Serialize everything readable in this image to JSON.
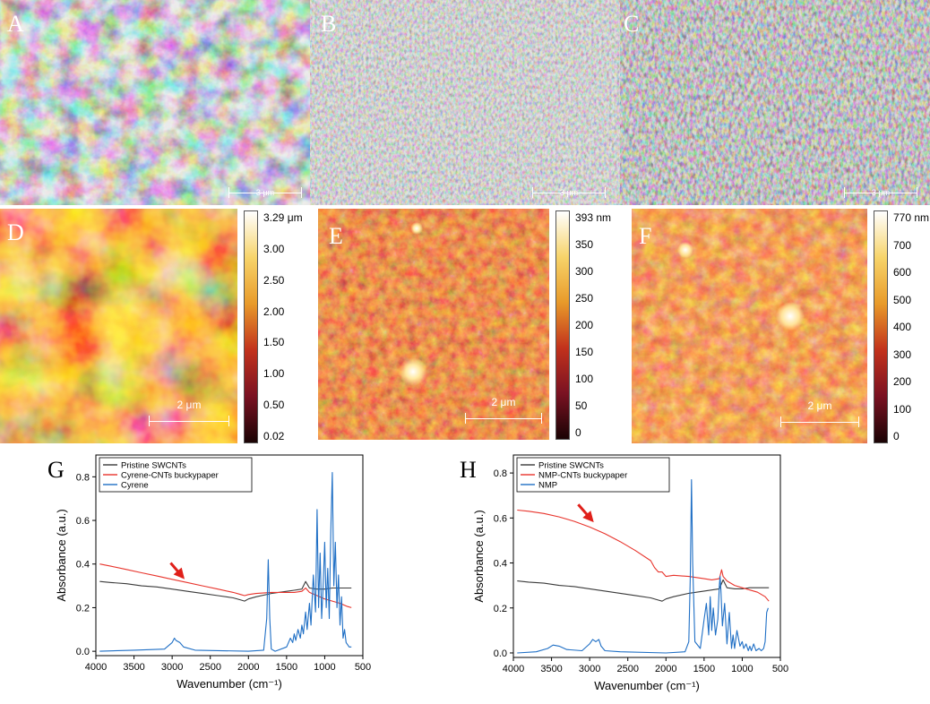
{
  "panels": {
    "A": {
      "label": "A",
      "scale": "3 μm"
    },
    "B": {
      "label": "B",
      "scale": "3 μm"
    },
    "C": {
      "label": "C",
      "scale": "3 μm"
    },
    "D": {
      "label": "D",
      "scale": "2 μm",
      "colorbar": [
        "3.29 μm",
        "3.00",
        "2.50",
        "2.00",
        "1.50",
        "1.00",
        "0.50",
        "0.02"
      ]
    },
    "E": {
      "label": "E",
      "scale": "2 μm",
      "colorbar": [
        "393 nm",
        "350",
        "300",
        "250",
        "200",
        "150",
        "100",
        "50",
        "0"
      ]
    },
    "F": {
      "label": "F",
      "scale": "2 μm",
      "colorbar": [
        "770 nm",
        "700",
        "600",
        "500",
        "400",
        "300",
        "200",
        "100",
        "0"
      ]
    }
  },
  "colors": {
    "pristine": "#3a3a3a",
    "buckypaper": "#e8342c",
    "solvent": "#1f6fc5",
    "arrow": "#e0201a"
  },
  "chart_data": [
    {
      "label": "G",
      "type": "line",
      "xlabel": "Wavenumber (cm⁻¹)",
      "ylabel": "Absorbance (a.u.)",
      "xlim": [
        4000,
        500
      ],
      "ylim": [
        -0.02,
        0.9
      ],
      "xticks": [
        4000,
        3500,
        3000,
        2500,
        2000,
        1500,
        1000,
        500
      ],
      "yticks": [
        0.0,
        0.2,
        0.4,
        0.6,
        0.8
      ],
      "ytick_labels": [
        "0.0",
        "0.2",
        "0.4",
        "0.6",
        "0.8"
      ],
      "legend": "top-left",
      "arrow": {
        "from": [
          3020,
          0.405
        ],
        "to": [
          2860,
          0.34
        ]
      },
      "series": [
        {
          "name": "Pristine SWCNTs",
          "color_key": "pristine",
          "x": [
            3950,
            3800,
            3600,
            3400,
            3200,
            3000,
            2800,
            2600,
            2400,
            2200,
            2100,
            2050,
            2000,
            1900,
            1700,
            1500,
            1400,
            1300,
            1250,
            1200,
            1100,
            1000,
            900,
            800,
            700,
            650
          ],
          "y": [
            0.32,
            0.315,
            0.31,
            0.3,
            0.295,
            0.285,
            0.275,
            0.265,
            0.255,
            0.245,
            0.235,
            0.23,
            0.24,
            0.25,
            0.265,
            0.275,
            0.28,
            0.285,
            0.32,
            0.29,
            0.285,
            0.285,
            0.29,
            0.29,
            0.29,
            0.29
          ]
        },
        {
          "name": "Cyrene-CNTs buckypaper",
          "color_key": "buckypaper",
          "x": [
            3950,
            3800,
            3600,
            3400,
            3200,
            3000,
            2800,
            2600,
            2400,
            2200,
            2100,
            2050,
            2000,
            1900,
            1700,
            1500,
            1400,
            1300,
            1250,
            1200,
            1100,
            1000,
            900,
            800,
            700,
            650
          ],
          "y": [
            0.4,
            0.39,
            0.375,
            0.36,
            0.345,
            0.33,
            0.315,
            0.3,
            0.285,
            0.27,
            0.26,
            0.255,
            0.26,
            0.265,
            0.27,
            0.27,
            0.27,
            0.275,
            0.29,
            0.27,
            0.255,
            0.24,
            0.23,
            0.22,
            0.205,
            0.2
          ]
        },
        {
          "name": "Cyrene",
          "color_key": "solvent",
          "x": [
            3950,
            3500,
            3100,
            3000,
            2970,
            2950,
            2900,
            2850,
            2700,
            2000,
            1800,
            1760,
            1740,
            1720,
            1700,
            1650,
            1500,
            1450,
            1420,
            1400,
            1380,
            1350,
            1320,
            1300,
            1280,
            1250,
            1230,
            1200,
            1180,
            1150,
            1120,
            1100,
            1080,
            1060,
            1040,
            1020,
            1000,
            980,
            960,
            940,
            920,
            900,
            880,
            860,
            840,
            820,
            800,
            780,
            760,
            740,
            720,
            700,
            680,
            650
          ],
          "y": [
            0.0,
            0.005,
            0.01,
            0.04,
            0.06,
            0.05,
            0.04,
            0.02,
            0.005,
            0.0,
            0.005,
            0.15,
            0.42,
            0.15,
            0.01,
            0.0,
            0.02,
            0.06,
            0.04,
            0.08,
            0.05,
            0.1,
            0.06,
            0.12,
            0.08,
            0.18,
            0.1,
            0.22,
            0.12,
            0.35,
            0.18,
            0.65,
            0.2,
            0.45,
            0.15,
            0.3,
            0.5,
            0.2,
            0.38,
            0.15,
            0.55,
            0.82,
            0.3,
            0.5,
            0.2,
            0.35,
            0.12,
            0.25,
            0.06,
            0.1,
            0.04,
            0.03,
            0.02,
            0.02
          ]
        }
      ]
    },
    {
      "label": "H",
      "type": "line",
      "xlabel": "Wavenumber (cm⁻¹)",
      "ylabel": "Absorbance (a.u.)",
      "xlim": [
        4000,
        500
      ],
      "ylim": [
        -0.02,
        0.88
      ],
      "xticks": [
        4000,
        3500,
        3000,
        2500,
        2000,
        1500,
        1000,
        500
      ],
      "yticks": [
        0.0,
        0.2,
        0.4,
        0.6,
        0.8
      ],
      "ytick_labels": [
        "0.0",
        "0.2",
        "0.4",
        "0.6",
        "0.8"
      ],
      "legend": "top-left",
      "arrow": {
        "from": [
          3150,
          0.66
        ],
        "to": [
          2970,
          0.59
        ]
      },
      "series": [
        {
          "name": "Pristine SWCNTs",
          "color_key": "pristine",
          "x": [
            3950,
            3800,
            3600,
            3400,
            3200,
            3000,
            2800,
            2600,
            2400,
            2200,
            2100,
            2050,
            2000,
            1900,
            1700,
            1500,
            1400,
            1300,
            1250,
            1200,
            1100,
            1000,
            900,
            800,
            700,
            650
          ],
          "y": [
            0.32,
            0.315,
            0.31,
            0.3,
            0.295,
            0.285,
            0.275,
            0.265,
            0.255,
            0.245,
            0.235,
            0.23,
            0.24,
            0.25,
            0.265,
            0.275,
            0.28,
            0.285,
            0.325,
            0.29,
            0.285,
            0.285,
            0.29,
            0.29,
            0.29,
            0.29
          ]
        },
        {
          "name": "NMP-CNTs buckypaper",
          "color_key": "buckypaper",
          "x": [
            3950,
            3800,
            3600,
            3400,
            3200,
            3000,
            2800,
            2600,
            2400,
            2200,
            2150,
            2100,
            2050,
            2000,
            1900,
            1700,
            1500,
            1400,
            1300,
            1270,
            1250,
            1200,
            1100,
            1000,
            900,
            800,
            700,
            650
          ],
          "y": [
            0.635,
            0.63,
            0.62,
            0.605,
            0.585,
            0.56,
            0.53,
            0.495,
            0.455,
            0.41,
            0.38,
            0.36,
            0.36,
            0.34,
            0.345,
            0.34,
            0.33,
            0.325,
            0.33,
            0.37,
            0.34,
            0.32,
            0.3,
            0.29,
            0.28,
            0.27,
            0.25,
            0.23
          ]
        },
        {
          "name": "NMP",
          "color_key": "solvent",
          "x": [
            3950,
            3700,
            3550,
            3480,
            3400,
            3300,
            3100,
            3000,
            2960,
            2920,
            2880,
            2850,
            2800,
            2600,
            2000,
            1750,
            1700,
            1680,
            1665,
            1650,
            1620,
            1550,
            1500,
            1470,
            1440,
            1420,
            1400,
            1380,
            1350,
            1320,
            1300,
            1290,
            1280,
            1260,
            1230,
            1200,
            1170,
            1140,
            1120,
            1100,
            1070,
            1030,
            1000,
            980,
            950,
            920,
            900,
            880,
            850,
            820,
            780,
            750,
            720,
            700,
            680,
            660
          ],
          "y": [
            0.0,
            0.005,
            0.02,
            0.035,
            0.03,
            0.015,
            0.01,
            0.04,
            0.06,
            0.05,
            0.06,
            0.03,
            0.01,
            0.005,
            0.0,
            0.005,
            0.05,
            0.35,
            0.77,
            0.4,
            0.05,
            0.02,
            0.15,
            0.22,
            0.08,
            0.25,
            0.1,
            0.2,
            0.08,
            0.15,
            0.3,
            0.34,
            0.28,
            0.12,
            0.22,
            0.04,
            0.18,
            0.02,
            0.08,
            0.02,
            0.1,
            0.03,
            0.05,
            0.02,
            0.04,
            0.01,
            0.03,
            0.01,
            0.04,
            0.01,
            0.02,
            0.01,
            0.02,
            0.05,
            0.18,
            0.2
          ]
        }
      ]
    }
  ]
}
